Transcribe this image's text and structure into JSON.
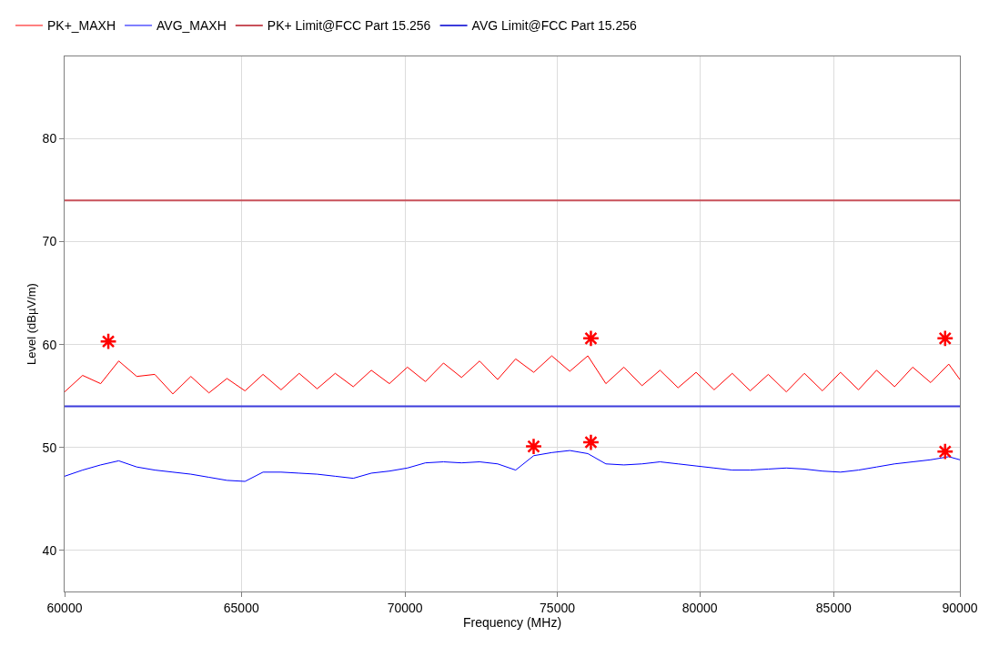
{
  "chart_data": {
    "type": "line",
    "xlabel": "Frequency (MHz)",
    "ylabel": "Level (dBµV/m)",
    "log": "x",
    "xlim": [
      60000,
      90000
    ],
    "xticks": [
      60000,
      65000,
      70000,
      75000,
      80000,
      85000,
      90000
    ],
    "ylim": [
      36,
      88
    ],
    "yticks": [
      40,
      50,
      60,
      70,
      80
    ],
    "grid": true,
    "legend": "top",
    "line_style": "solid",
    "marker": "none",
    "x": [
      60000,
      60492,
      60988,
      61489,
      61993,
      62501,
      63014,
      63531,
      64053,
      64578,
      65108,
      65642,
      66181,
      66724,
      67271,
      67823,
      68380,
      68941,
      69507,
      70077,
      70652,
      71232,
      71816,
      72406,
      73000,
      73598,
      74203,
      74812,
      75425,
      76044,
      76668,
      77297,
      77932,
      78571,
      79216,
      79866,
      80521,
      81182,
      81848,
      82520,
      83197,
      83879,
      84568,
      85262,
      85961,
      86667,
      87378,
      88095,
      88818,
      89547,
      90000
    ],
    "series": [
      {
        "name": "PK+_MAXH",
        "color": "#ff0000",
        "values": [
          55.4,
          57.0,
          56.2,
          58.4,
          56.9,
          57.1,
          55.2,
          56.9,
          55.3,
          56.7,
          55.5,
          57.1,
          55.6,
          57.2,
          55.7,
          57.2,
          55.9,
          57.5,
          56.2,
          57.8,
          56.4,
          58.2,
          56.8,
          58.4,
          56.6,
          58.6,
          57.3,
          58.9,
          57.4,
          58.9,
          56.2,
          57.8,
          56.0,
          57.5,
          55.8,
          57.3,
          55.6,
          57.2,
          55.5,
          57.1,
          55.4,
          57.2,
          55.5,
          57.3,
          55.6,
          57.5,
          55.9,
          57.8,
          56.3,
          58.1,
          56.6
        ]
      },
      {
        "name": "AVG_MAXH",
        "color": "#0000ff",
        "values": [
          47.2,
          47.8,
          48.3,
          48.7,
          48.1,
          47.8,
          47.6,
          47.4,
          47.1,
          46.8,
          46.7,
          47.6,
          47.6,
          47.5,
          47.4,
          47.2,
          47.0,
          47.5,
          47.7,
          48.0,
          48.5,
          48.6,
          48.5,
          48.6,
          48.4,
          47.8,
          49.2,
          49.5,
          49.7,
          49.4,
          48.4,
          48.3,
          48.4,
          48.6,
          48.4,
          48.2,
          48.0,
          47.8,
          47.8,
          47.9,
          48.0,
          47.9,
          47.7,
          47.6,
          47.8,
          48.1,
          48.4,
          48.6,
          48.8,
          49.1,
          48.8
        ]
      },
      {
        "name": "PK+ Limit@FCC Part 15.256",
        "color": "#c8505a",
        "x": [
          60000,
          90000
        ],
        "values": [
          74,
          74
        ]
      },
      {
        "name": "AVG Limit@FCC Part 15.256",
        "color": "#3c3cdc",
        "x": [
          60000,
          90000
        ],
        "values": [
          54,
          54
        ]
      },
      {
        "type": "scatter",
        "color": "#ff0000",
        "marker": "cross",
        "x": [
          61200,
          76150,
          89400,
          74200,
          76150,
          89400
        ],
        "values": [
          60.3,
          60.6,
          60.6,
          50.1,
          50.5,
          49.6
        ]
      }
    ]
  }
}
